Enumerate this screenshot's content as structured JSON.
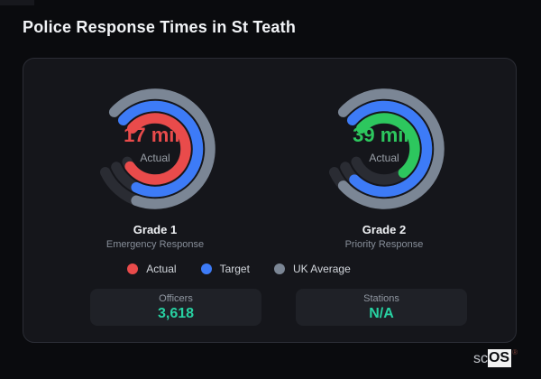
{
  "page": {
    "title": "Police Response Times in St Teath"
  },
  "chart_data": [
    {
      "type": "gauge",
      "title": "Grade 1",
      "subtitle": "Emergency Response",
      "center_value": "17 min",
      "center_label": "Actual",
      "center_value_color": "#e94b4b",
      "scale": {
        "start_deg": -48,
        "track_sweep_deg": 293,
        "track_color": "#2a2c33"
      },
      "rings": [
        {
          "name": "UK Average",
          "color": "#7b8695",
          "sweep_deg": 248
        },
        {
          "name": "Target",
          "color": "#3d7bf7",
          "sweep_deg": 254
        },
        {
          "name": "Actual",
          "color": "#e94b4b",
          "sweep_deg": 283
        }
      ]
    },
    {
      "type": "gauge",
      "title": "Grade 2",
      "subtitle": "Priority Response",
      "center_value": "39 min",
      "center_label": "Actual",
      "center_value_color": "#2dc75e",
      "scale": {
        "start_deg": -48,
        "track_sweep_deg": 293,
        "track_color": "#2a2c33"
      },
      "rings": [
        {
          "name": "UK Average",
          "color": "#7b8695",
          "sweep_deg": 276
        },
        {
          "name": "Target",
          "color": "#3d7bf7",
          "sweep_deg": 272
        },
        {
          "name": "Actual",
          "color": "#2dc75e",
          "sweep_deg": 189
        }
      ]
    }
  ],
  "legend": {
    "items": [
      {
        "label": "Actual",
        "color": "#e94b4b"
      },
      {
        "label": "Target",
        "color": "#3d7bf7"
      },
      {
        "label": "UK Average",
        "color": "#7b8695"
      }
    ]
  },
  "stats": [
    {
      "label": "Officers",
      "value": "3,618"
    },
    {
      "label": "Stations",
      "value": "N/A"
    }
  ],
  "logo": {
    "prefix": "sc",
    "suffix": "OS",
    "registered": "®"
  }
}
